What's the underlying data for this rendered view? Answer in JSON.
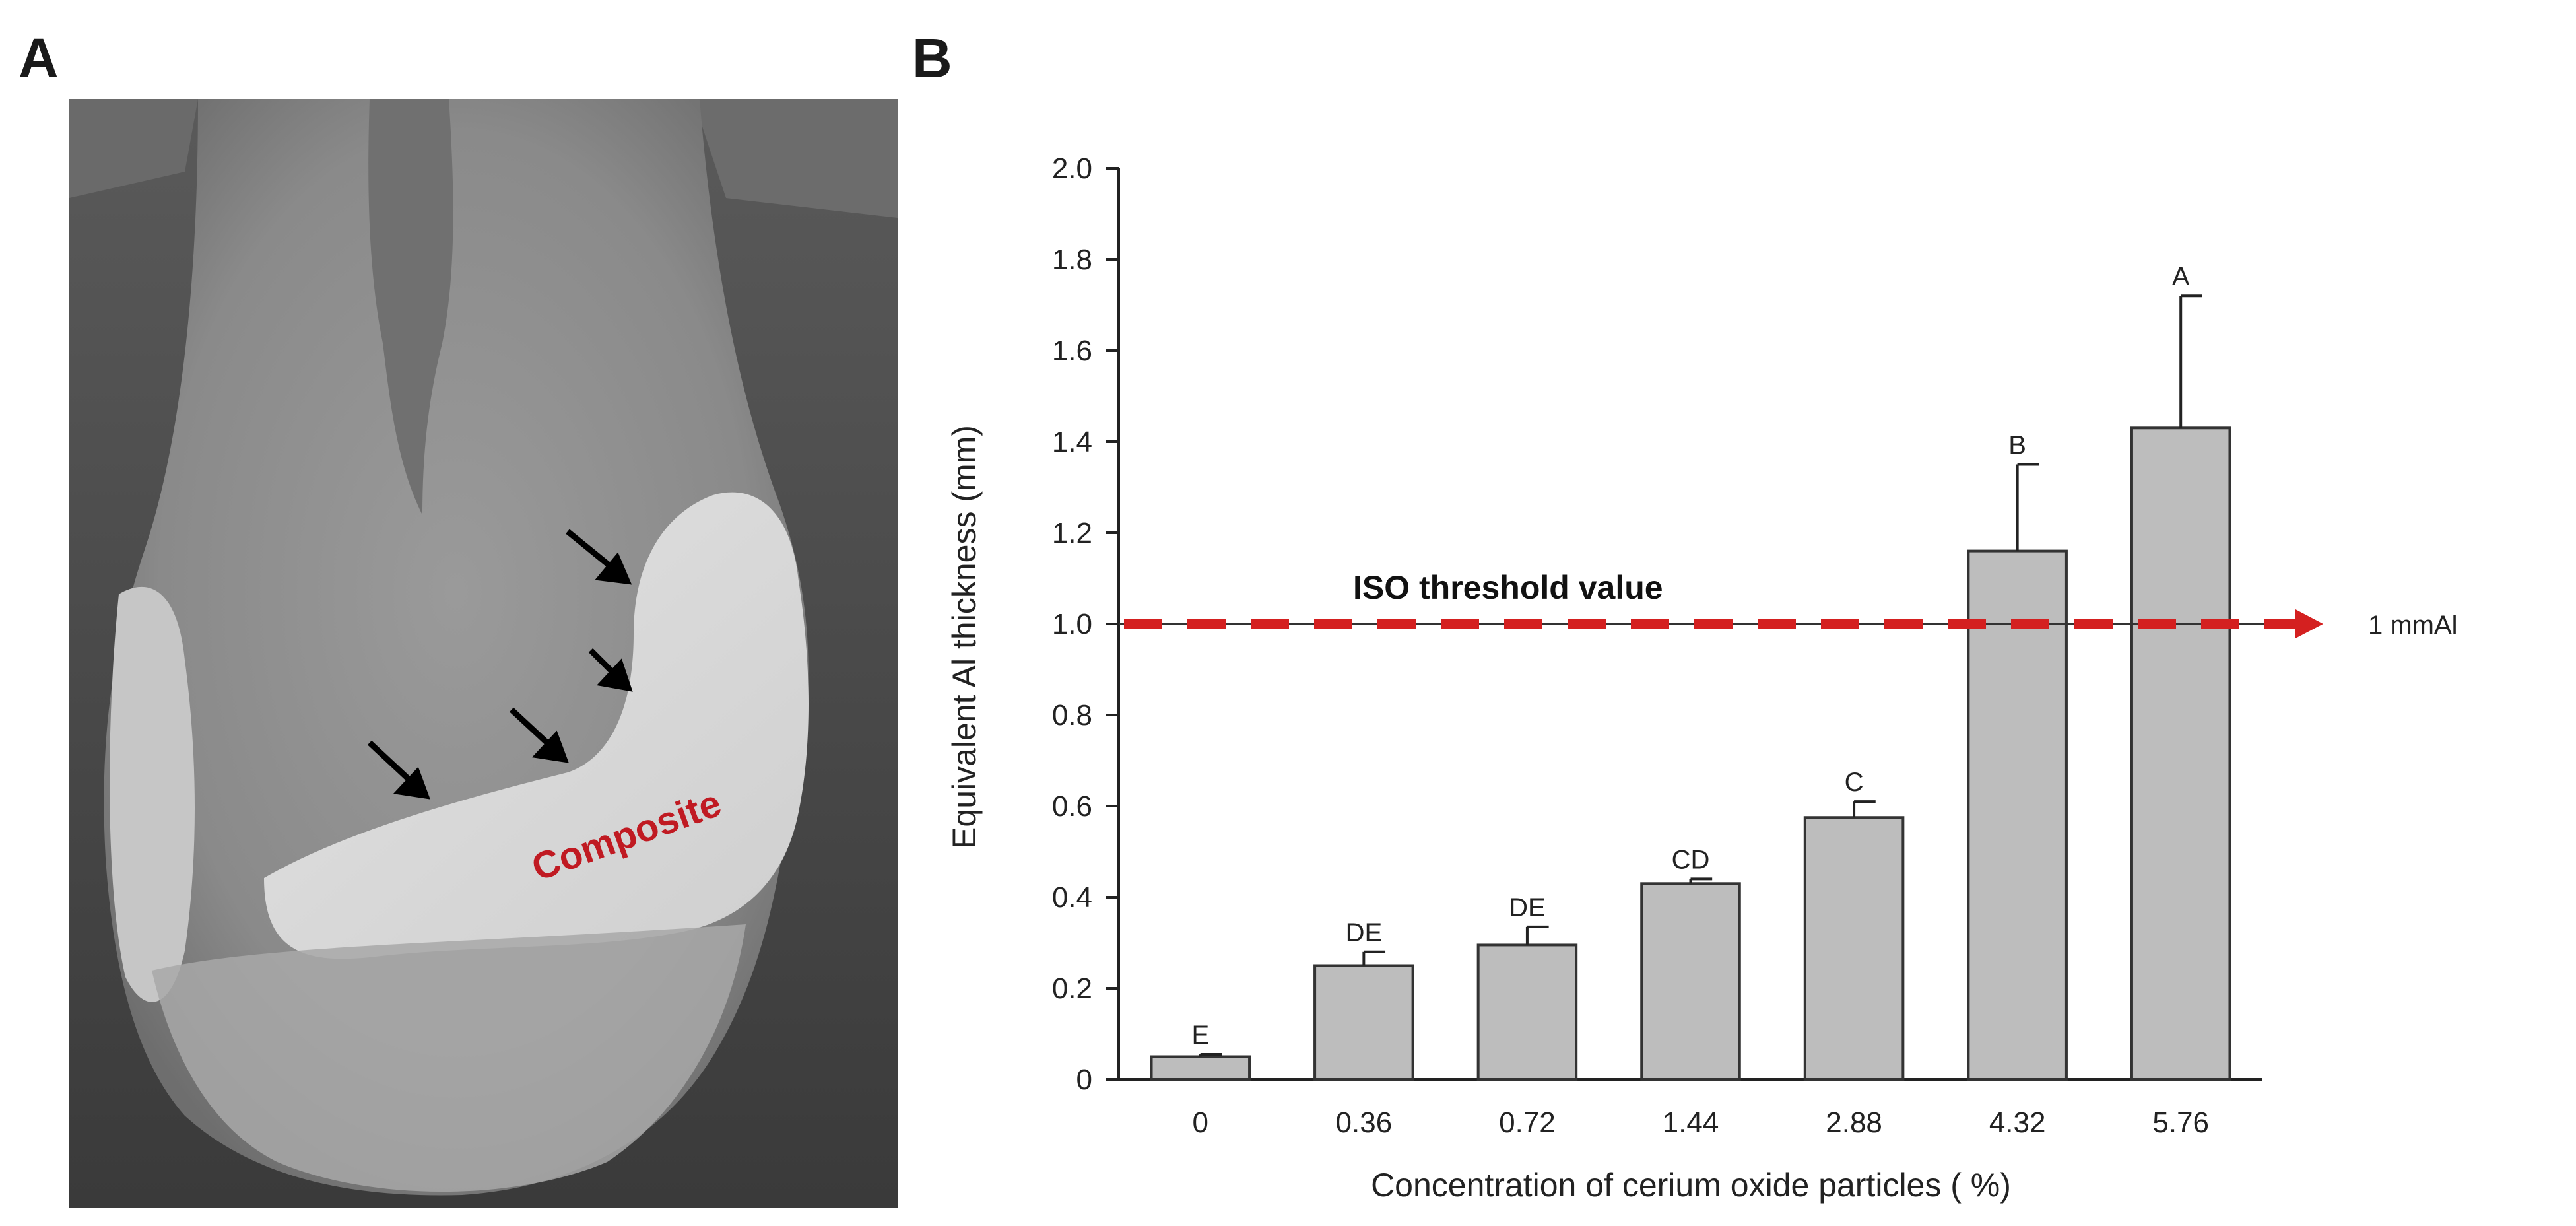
{
  "panel_a": {
    "letter": "A",
    "composite_label": "Composite",
    "label_color": "#c01a22",
    "arrow_count": 4
  },
  "panel_b": {
    "letter": "B"
  },
  "chart_data": {
    "type": "bar",
    "title": "",
    "xlabel": "Concentration of cerium oxide particles ( %)",
    "ylabel": "Equivalent Al thickness (mm)",
    "categories": [
      "0",
      "0.36",
      "0.72",
      "1.44",
      "2.88",
      "4.32",
      "5.76"
    ],
    "values": [
      0.05,
      0.25,
      0.295,
      0.43,
      0.575,
      1.16,
      1.43
    ],
    "errors": [
      0.005,
      0.03,
      0.04,
      0.01,
      0.035,
      0.19,
      0.29
    ],
    "group_labels": [
      "E",
      "DE",
      "DE",
      "CD",
      "C",
      "B",
      "A"
    ],
    "ylim": [
      0,
      2.0
    ],
    "yticks": [
      0,
      0.2,
      0.4,
      0.6,
      0.8,
      1.0,
      1.2,
      1.4,
      1.6,
      1.8,
      2.0
    ],
    "ytick_labels": [
      "0",
      "0.2",
      "0.4",
      "0.6",
      "0.8",
      "1.0",
      "1.2",
      "1.4",
      "1.6",
      "1.8",
      "2.0"
    ],
    "bar_color": "#bdbdbd",
    "reference_line": {
      "value": 1.0,
      "label": "ISO threshold value",
      "end_label": "1 mmAl",
      "color": "#d42020"
    }
  }
}
